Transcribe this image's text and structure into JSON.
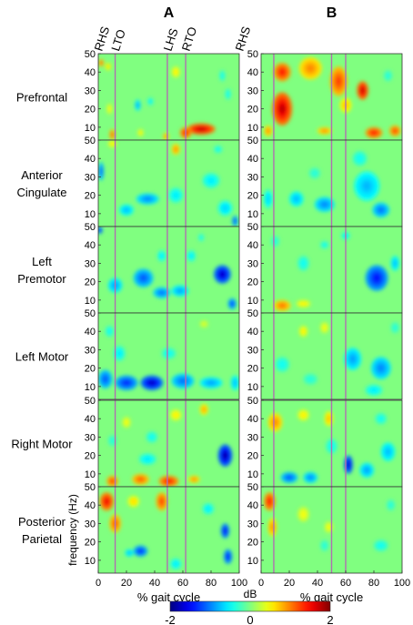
{
  "chart_data": {
    "type": "heatmap",
    "columns": [
      {
        "label": "A",
        "events": [
          {
            "label": "RHS",
            "x": 0
          },
          {
            "label": "LTO",
            "x": 12
          },
          {
            "label": "LHS",
            "x": 49
          },
          {
            "label": "RTO",
            "x": 62
          },
          {
            "label": "RHS",
            "x": 100
          }
        ]
      },
      {
        "label": "B",
        "events": [
          {
            "label": "",
            "x": 9
          },
          {
            "label": "",
            "x": 50
          },
          {
            "label": "",
            "x": 60
          }
        ]
      }
    ],
    "rows": [
      {
        "label": [
          "Prefrontal"
        ]
      },
      {
        "label": [
          "Anterior",
          "Cingulate"
        ]
      },
      {
        "label": [
          "Left",
          "Premotor"
        ]
      },
      {
        "label": [
          "Left Motor"
        ]
      },
      {
        "label": [
          "Right Motor"
        ]
      },
      {
        "label": [
          "Posterior",
          "Parietal"
        ]
      }
    ],
    "y_ticks": [
      50,
      40,
      30,
      20,
      10
    ],
    "ylim": [
      3,
      50
    ],
    "x_ticks": [
      0,
      20,
      40,
      60,
      80,
      100
    ],
    "xlim": [
      0,
      100
    ],
    "xlabel": "% gait cycle",
    "ylabel": "frequency (Hz)",
    "colorbar": {
      "label": "dB",
      "min": -2,
      "max": 2,
      "ticks": [
        "-2",
        "0",
        "2"
      ],
      "colormap": "jet"
    },
    "event_line_color": "#b06fb0",
    "blobs": {
      "A": [
        [
          {
            "x": 2,
            "y": 45,
            "v": 1.2,
            "rx": 2,
            "ry": 2
          },
          {
            "x": 7,
            "y": 43,
            "v": 0.7,
            "rx": 2,
            "ry": 2
          },
          {
            "x": 28,
            "y": 22,
            "v": -0.9,
            "rx": 2,
            "ry": 3
          },
          {
            "x": 37,
            "y": 24,
            "v": -0.6,
            "rx": 2,
            "ry": 2
          },
          {
            "x": 8,
            "y": 20,
            "v": 0.5,
            "rx": 2,
            "ry": 3
          },
          {
            "x": 55,
            "y": 40,
            "v": 0.6,
            "rx": 3,
            "ry": 3
          },
          {
            "x": 88,
            "y": 38,
            "v": -0.5,
            "rx": 2,
            "ry": 3
          },
          {
            "x": 73,
            "y": 9,
            "v": 1.8,
            "rx": 10,
            "ry": 3
          },
          {
            "x": 62,
            "y": 7,
            "v": 1.5,
            "rx": 4,
            "ry": 3
          },
          {
            "x": 10,
            "y": 6,
            "v": 1.2,
            "rx": 2,
            "ry": 3
          },
          {
            "x": 48,
            "y": 5,
            "v": 1.0,
            "rx": 2,
            "ry": 2
          },
          {
            "x": 30,
            "y": 7,
            "v": 0.6,
            "rx": 2,
            "ry": 2
          },
          {
            "x": 92,
            "y": 28,
            "v": -0.5,
            "rx": 2,
            "ry": 3
          }
        ],
        [
          {
            "x": 2,
            "y": 33,
            "v": -1.2,
            "rx": 2,
            "ry": 5
          },
          {
            "x": 35,
            "y": 18,
            "v": -1.0,
            "rx": 8,
            "ry": 3
          },
          {
            "x": 20,
            "y": 12,
            "v": -0.8,
            "rx": 5,
            "ry": 3
          },
          {
            "x": 55,
            "y": 20,
            "v": -0.6,
            "rx": 5,
            "ry": 4
          },
          {
            "x": 80,
            "y": 28,
            "v": -0.6,
            "rx": 6,
            "ry": 4
          },
          {
            "x": 90,
            "y": 13,
            "v": -0.7,
            "rx": 5,
            "ry": 4
          },
          {
            "x": 97,
            "y": 6,
            "v": -1.3,
            "rx": 2,
            "ry": 3
          },
          {
            "x": 55,
            "y": 45,
            "v": 1.0,
            "rx": 3,
            "ry": 3
          },
          {
            "x": 10,
            "y": 48,
            "v": 0.6,
            "rx": 3,
            "ry": 2
          },
          {
            "x": 85,
            "y": 45,
            "v": -0.5,
            "rx": 3,
            "ry": 2
          }
        ],
        [
          {
            "x": 1,
            "y": 48,
            "v": -1.6,
            "rx": 2,
            "ry": 2
          },
          {
            "x": 12,
            "y": 18,
            "v": -0.9,
            "rx": 5,
            "ry": 4
          },
          {
            "x": 32,
            "y": 22,
            "v": -1.2,
            "rx": 7,
            "ry": 5
          },
          {
            "x": 45,
            "y": 14,
            "v": -1.1,
            "rx": 6,
            "ry": 3
          },
          {
            "x": 58,
            "y": 15,
            "v": -0.9,
            "rx": 6,
            "ry": 3
          },
          {
            "x": 88,
            "y": 24,
            "v": -1.8,
            "rx": 6,
            "ry": 5
          },
          {
            "x": 95,
            "y": 8,
            "v": -1.3,
            "rx": 3,
            "ry": 3
          },
          {
            "x": 45,
            "y": 34,
            "v": -0.6,
            "rx": 3,
            "ry": 3
          },
          {
            "x": 66,
            "y": 34,
            "v": -0.6,
            "rx": 3,
            "ry": 3
          },
          {
            "x": 73,
            "y": 44,
            "v": -0.5,
            "rx": 2,
            "ry": 2
          }
        ],
        [
          {
            "x": 5,
            "y": 14,
            "v": -1.2,
            "rx": 5,
            "ry": 5
          },
          {
            "x": 20,
            "y": 12,
            "v": -1.4,
            "rx": 8,
            "ry": 4
          },
          {
            "x": 38,
            "y": 12,
            "v": -1.8,
            "rx": 8,
            "ry": 4
          },
          {
            "x": 60,
            "y": 13,
            "v": -1.1,
            "rx": 8,
            "ry": 4
          },
          {
            "x": 80,
            "y": 12,
            "v": -0.9,
            "rx": 8,
            "ry": 3
          },
          {
            "x": 97,
            "y": 12,
            "v": -0.8,
            "rx": 3,
            "ry": 4
          },
          {
            "x": 15,
            "y": 28,
            "v": -0.6,
            "rx": 4,
            "ry": 4
          },
          {
            "x": 50,
            "y": 28,
            "v": -0.5,
            "rx": 5,
            "ry": 3
          },
          {
            "x": 8,
            "y": 40,
            "v": -0.5,
            "rx": 3,
            "ry": 3
          },
          {
            "x": 75,
            "y": 44,
            "v": 0.4,
            "rx": 3,
            "ry": 2
          }
        ],
        [
          {
            "x": 10,
            "y": 6,
            "v": 1.3,
            "rx": 4,
            "ry": 3
          },
          {
            "x": 30,
            "y": 7,
            "v": 1.2,
            "rx": 6,
            "ry": 3
          },
          {
            "x": 50,
            "y": 6,
            "v": 1.5,
            "rx": 7,
            "ry": 3
          },
          {
            "x": 68,
            "y": 7,
            "v": 1.0,
            "rx": 4,
            "ry": 2
          },
          {
            "x": 20,
            "y": 38,
            "v": 0.5,
            "rx": 3,
            "ry": 3
          },
          {
            "x": 38,
            "y": 30,
            "v": -0.5,
            "rx": 4,
            "ry": 3
          },
          {
            "x": 55,
            "y": 42,
            "v": 0.6,
            "rx": 4,
            "ry": 3
          },
          {
            "x": 75,
            "y": 45,
            "v": 0.9,
            "rx": 3,
            "ry": 3
          },
          {
            "x": 90,
            "y": 20,
            "v": -1.9,
            "rx": 5,
            "ry": 6
          },
          {
            "x": 35,
            "y": 18,
            "v": -0.6,
            "rx": 6,
            "ry": 3
          },
          {
            "x": 10,
            "y": 28,
            "v": -0.4,
            "rx": 3,
            "ry": 3
          }
        ],
        [
          {
            "x": 6,
            "y": 42,
            "v": 1.6,
            "rx": 5,
            "ry": 5
          },
          {
            "x": 12,
            "y": 30,
            "v": 1.2,
            "rx": 4,
            "ry": 5
          },
          {
            "x": 45,
            "y": 42,
            "v": 1.3,
            "rx": 4,
            "ry": 5
          },
          {
            "x": 25,
            "y": 42,
            "v": 0.7,
            "rx": 4,
            "ry": 3
          },
          {
            "x": 30,
            "y": 15,
            "v": -1.4,
            "rx": 5,
            "ry": 3
          },
          {
            "x": 22,
            "y": 14,
            "v": -0.8,
            "rx": 3,
            "ry": 2
          },
          {
            "x": 55,
            "y": 8,
            "v": -0.6,
            "rx": 4,
            "ry": 3
          },
          {
            "x": 90,
            "y": 26,
            "v": -1.6,
            "rx": 3,
            "ry": 4
          },
          {
            "x": 92,
            "y": 12,
            "v": -1.5,
            "rx": 3,
            "ry": 4
          },
          {
            "x": 78,
            "y": 38,
            "v": -0.6,
            "rx": 4,
            "ry": 3
          }
        ]
      ],
      "B": [
        [
          {
            "x": 15,
            "y": 20,
            "v": 1.8,
            "rx": 7,
            "ry": 9
          },
          {
            "x": 15,
            "y": 40,
            "v": 1.5,
            "rx": 6,
            "ry": 5
          },
          {
            "x": 35,
            "y": 42,
            "v": 1.0,
            "rx": 8,
            "ry": 6
          },
          {
            "x": 55,
            "y": 35,
            "v": 1.3,
            "rx": 6,
            "ry": 8
          },
          {
            "x": 72,
            "y": 30,
            "v": 1.8,
            "rx": 4,
            "ry": 5
          },
          {
            "x": 60,
            "y": 22,
            "v": 0.8,
            "rx": 4,
            "ry": 4
          },
          {
            "x": 80,
            "y": 7,
            "v": 1.5,
            "rx": 6,
            "ry": 3
          },
          {
            "x": 95,
            "y": 8,
            "v": 1.3,
            "rx": 4,
            "ry": 3
          },
          {
            "x": 45,
            "y": 8,
            "v": 1.0,
            "rx": 5,
            "ry": 2
          },
          {
            "x": 5,
            "y": 8,
            "v": 1.0,
            "rx": 3,
            "ry": 3
          },
          {
            "x": 90,
            "y": 38,
            "v": -0.4,
            "rx": 3,
            "ry": 3
          }
        ],
        [
          {
            "x": 5,
            "y": 18,
            "v": -0.7,
            "rx": 3,
            "ry": 5
          },
          {
            "x": 25,
            "y": 18,
            "v": -0.8,
            "rx": 5,
            "ry": 4
          },
          {
            "x": 45,
            "y": 15,
            "v": -1.0,
            "rx": 7,
            "ry": 4
          },
          {
            "x": 75,
            "y": 25,
            "v": -0.8,
            "rx": 9,
            "ry": 8
          },
          {
            "x": 85,
            "y": 12,
            "v": -1.1,
            "rx": 6,
            "ry": 4
          },
          {
            "x": 70,
            "y": 40,
            "v": -0.5,
            "rx": 5,
            "ry": 4
          },
          {
            "x": 38,
            "y": 32,
            "v": -0.4,
            "rx": 4,
            "ry": 3
          }
        ],
        [
          {
            "x": 15,
            "y": 7,
            "v": 1.1,
            "rx": 6,
            "ry": 3
          },
          {
            "x": 30,
            "y": 8,
            "v": 0.6,
            "rx": 5,
            "ry": 2
          },
          {
            "x": 82,
            "y": 22,
            "v": -1.5,
            "rx": 8,
            "ry": 7
          },
          {
            "x": 95,
            "y": 30,
            "v": -0.8,
            "rx": 3,
            "ry": 4
          },
          {
            "x": 30,
            "y": 30,
            "v": -0.5,
            "rx": 4,
            "ry": 4
          },
          {
            "x": 45,
            "y": 40,
            "v": -0.5,
            "rx": 3,
            "ry": 2
          },
          {
            "x": 60,
            "y": 45,
            "v": -0.6,
            "rx": 3,
            "ry": 2
          },
          {
            "x": 10,
            "y": 42,
            "v": -0.4,
            "rx": 3,
            "ry": 3
          }
        ],
        [
          {
            "x": 30,
            "y": 40,
            "v": 0.6,
            "rx": 3,
            "ry": 3
          },
          {
            "x": 45,
            "y": 42,
            "v": 0.5,
            "rx": 3,
            "ry": 3
          },
          {
            "x": 65,
            "y": 25,
            "v": -0.9,
            "rx": 6,
            "ry": 6
          },
          {
            "x": 85,
            "y": 20,
            "v": -1.0,
            "rx": 7,
            "ry": 6
          },
          {
            "x": 15,
            "y": 22,
            "v": -0.5,
            "rx": 5,
            "ry": 4
          },
          {
            "x": 35,
            "y": 14,
            "v": -0.4,
            "rx": 5,
            "ry": 3
          },
          {
            "x": 80,
            "y": 8,
            "v": -0.6,
            "rx": 6,
            "ry": 3
          },
          {
            "x": 95,
            "y": 42,
            "v": -0.4,
            "rx": 3,
            "ry": 3
          }
        ],
        [
          {
            "x": 10,
            "y": 38,
            "v": 1.0,
            "rx": 5,
            "ry": 5
          },
          {
            "x": 30,
            "y": 42,
            "v": 0.6,
            "rx": 4,
            "ry": 3
          },
          {
            "x": 48,
            "y": 40,
            "v": 0.8,
            "rx": 3,
            "ry": 4
          },
          {
            "x": 20,
            "y": 8,
            "v": -1.2,
            "rx": 6,
            "ry": 3
          },
          {
            "x": 35,
            "y": 8,
            "v": -1.0,
            "rx": 5,
            "ry": 3
          },
          {
            "x": 62,
            "y": 15,
            "v": -1.8,
            "rx": 3,
            "ry": 5
          },
          {
            "x": 75,
            "y": 12,
            "v": -0.9,
            "rx": 5,
            "ry": 4
          },
          {
            "x": 90,
            "y": 22,
            "v": -0.8,
            "rx": 5,
            "ry": 5
          },
          {
            "x": 85,
            "y": 40,
            "v": -0.5,
            "rx": 4,
            "ry": 3
          },
          {
            "x": 50,
            "y": 25,
            "v": -0.5,
            "rx": 4,
            "ry": 4
          }
        ],
        [
          {
            "x": 6,
            "y": 42,
            "v": 1.5,
            "rx": 4,
            "ry": 5
          },
          {
            "x": 8,
            "y": 28,
            "v": 1.0,
            "rx": 3,
            "ry": 5
          },
          {
            "x": 30,
            "y": 35,
            "v": 0.5,
            "rx": 4,
            "ry": 4
          },
          {
            "x": 48,
            "y": 28,
            "v": 0.5,
            "rx": 3,
            "ry": 3
          },
          {
            "x": 45,
            "y": 18,
            "v": -0.4,
            "rx": 3,
            "ry": 3
          },
          {
            "x": 85,
            "y": 18,
            "v": -0.5,
            "rx": 5,
            "ry": 3
          },
          {
            "x": 92,
            "y": 40,
            "v": -0.4,
            "rx": 3,
            "ry": 3
          }
        ]
      ]
    }
  }
}
